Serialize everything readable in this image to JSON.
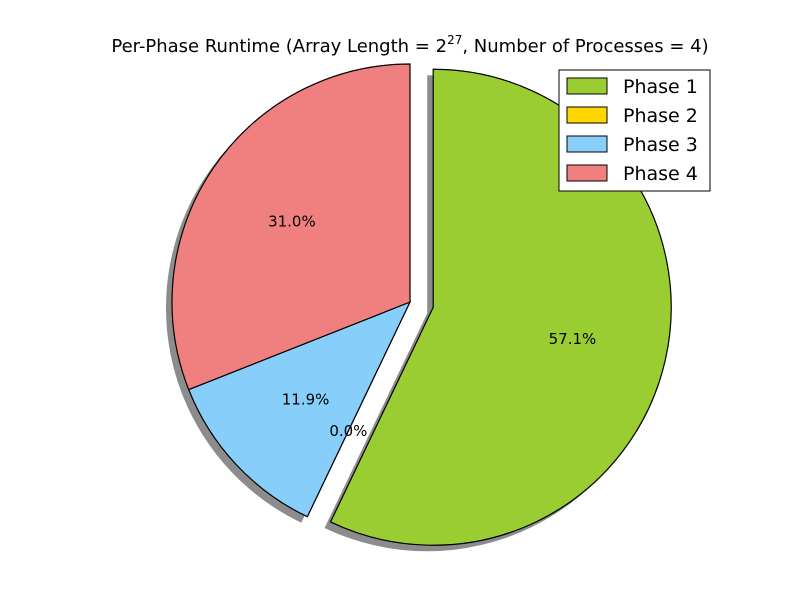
{
  "chart_data": {
    "type": "pie",
    "title": {
      "prefix": "Per-Phase Runtime (Array Length = 2",
      "exponent": "27",
      "suffix": ", Number of Processes = 4)"
    },
    "categories": [
      "Phase 1",
      "Phase 2",
      "Phase 3",
      "Phase 4"
    ],
    "values": [
      57.1,
      0.0,
      11.9,
      31.0
    ],
    "labels": [
      "57.1%",
      "0.0%",
      "11.9%",
      "31.0%"
    ],
    "colors": [
      "#9acd32",
      "#ffd700",
      "#87cefa",
      "#f08080"
    ],
    "explode": [
      0.1,
      0,
      0,
      0
    ],
    "start_angle": 90,
    "shadow": true,
    "legend": {
      "placement": "top-right",
      "entries": [
        "Phase 1",
        "Phase 2",
        "Phase 3",
        "Phase 4"
      ]
    }
  }
}
